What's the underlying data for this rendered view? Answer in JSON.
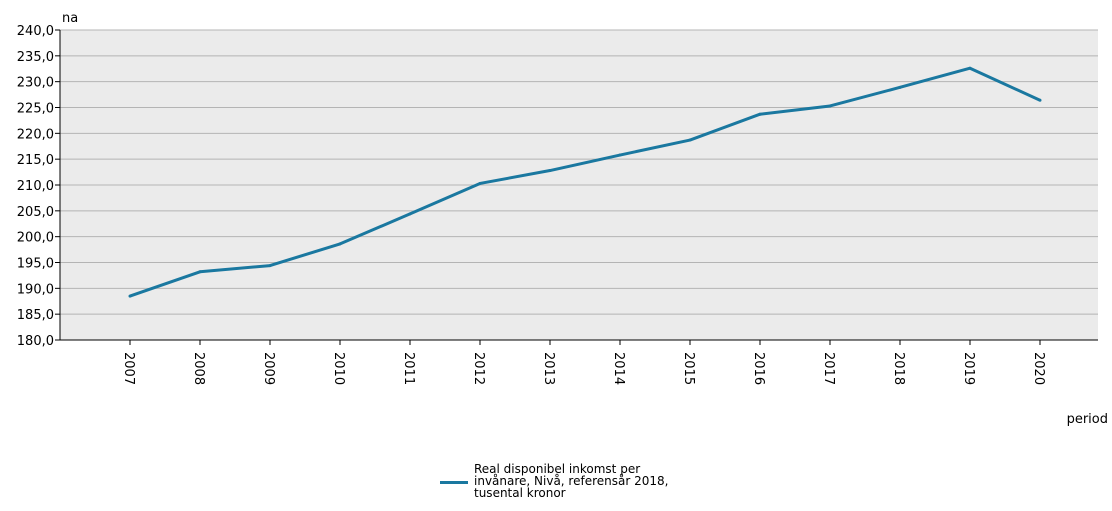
{
  "chart_data": {
    "type": "line",
    "title": "",
    "xlabel": "period",
    "ylabel": "na",
    "ylim": [
      180,
      240
    ],
    "yticks": [
      "180,0",
      "185,0",
      "190,0",
      "195,0",
      "200,0",
      "205,0",
      "210,0",
      "215,0",
      "220,0",
      "225,0",
      "230,0",
      "235,0",
      "240,0"
    ],
    "categories": [
      "2007",
      "2008",
      "2009",
      "2010",
      "2011",
      "2012",
      "2013",
      "2014",
      "2015",
      "2016",
      "2017",
      "2018",
      "2019",
      "2020"
    ],
    "series": [
      {
        "name": "Real disponibel inkomst per invånare, Nivå, referensår 2018, tusental kronor",
        "color": "#1a78a0",
        "values": [
          188.5,
          193.2,
          194.4,
          198.6,
          204.4,
          210.3,
          212.8,
          215.8,
          218.7,
          223.7,
          225.3,
          228.9,
          232.6,
          226.4
        ]
      }
    ],
    "grid": true,
    "plot_background": "#ebebeb",
    "legend_position": "bottom-center"
  }
}
